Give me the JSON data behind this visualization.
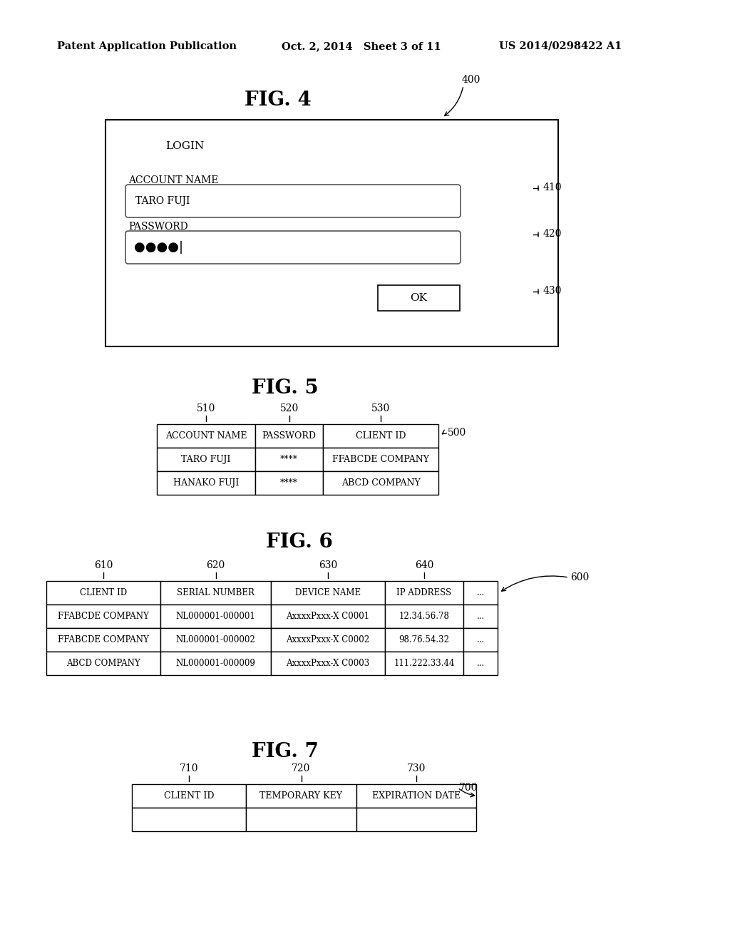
{
  "bg_color": "#ffffff",
  "header_text": "Patent Application Publication",
  "header_date": "Oct. 2, 2014   Sheet 3 of 11",
  "header_patent": "US 2014/0298422 A1",
  "fig4": {
    "title": "FIG. 4",
    "label": "400",
    "login_label": "LOGIN",
    "account_label": "ACCOUNT NAME",
    "account_value": "TARO FUJI",
    "password_label": "PASSWORD",
    "password_dots": "●●●●|",
    "ok_label": "OK",
    "ref_410": "410",
    "ref_420": "420",
    "ref_430": "430"
  },
  "fig5": {
    "title": "FIG. 5",
    "label": "500",
    "ref_510": "510",
    "ref_520": "520",
    "ref_530": "530",
    "headers": [
      "ACCOUNT NAME",
      "PASSWORD",
      "CLIENT ID"
    ],
    "rows": [
      [
        "TARO FUJI",
        "****",
        "FFABCDE COMPANY"
      ],
      [
        "HANAKO FUJI",
        "****",
        "ABCD COMPANY"
      ]
    ]
  },
  "fig6": {
    "title": "FIG. 6",
    "label": "600",
    "ref_610": "610",
    "ref_620": "620",
    "ref_630": "630",
    "ref_640": "640",
    "headers": [
      "CLIENT ID",
      "SERIAL NUMBER",
      "DEVICE NAME",
      "IP ADDRESS",
      "..."
    ],
    "rows": [
      [
        "FFABCDE COMPANY",
        "NL000001-000001",
        "AxxxxPxxx-X C0001",
        "12.34.56.78",
        "..."
      ],
      [
        "FFABCDE COMPANY",
        "NL000001-000002",
        "AxxxxPxxx-X C0002",
        "98.76.54.32",
        "..."
      ],
      [
        "ABCD COMPANY",
        "NL000001-000009",
        "AxxxxPxxx-X C0003",
        "111.222.33.44",
        "..."
      ]
    ]
  },
  "fig7": {
    "title": "FIG. 7",
    "label": "700",
    "ref_710": "710",
    "ref_720": "720",
    "ref_730": "730",
    "headers": [
      "CLIENT ID",
      "TEMPORARY KEY",
      "EXPIRATION DATE"
    ],
    "rows": [
      [
        "",
        "",
        ""
      ]
    ]
  }
}
